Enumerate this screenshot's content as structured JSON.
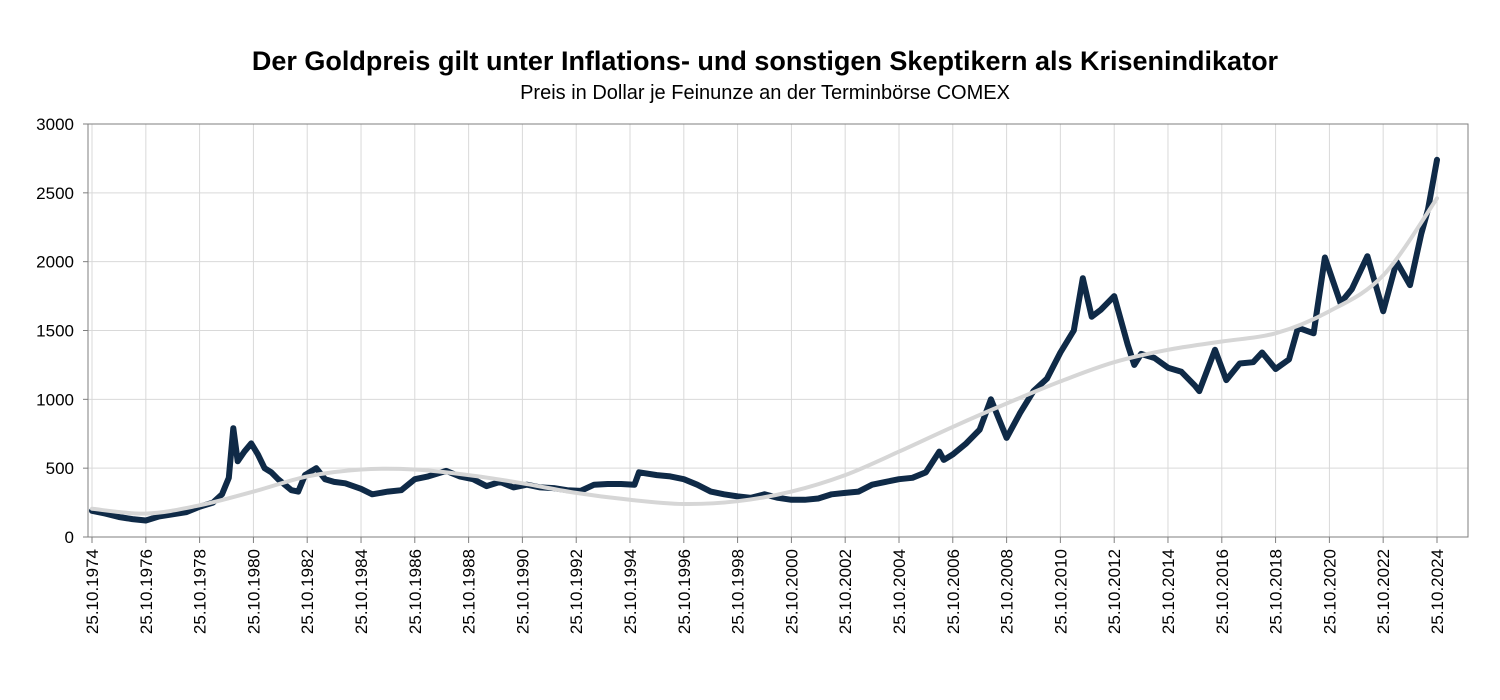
{
  "chart_data": {
    "type": "line",
    "title": "Der Goldpreis gilt unter Inflations- und sonstigen Skeptikern als Krisenindikator",
    "subtitle": "Preis in Dollar je Feinunze an der Terminbörse COMEX",
    "xlabel": "",
    "ylabel": "",
    "xlim": [
      "25.10.1974",
      "25.10.2024"
    ],
    "ylim": [
      0,
      3000
    ],
    "y_ticks": [
      "0",
      "500",
      "1000",
      "1500",
      "2000",
      "2500",
      "3000"
    ],
    "x_ticks": [
      "25.10.1974",
      "25.10.1976",
      "25.10.1978",
      "25.10.1980",
      "25.10.1982",
      "25.10.1984",
      "25.10.1986",
      "25.10.1988",
      "25.10.1990",
      "25.10.1992",
      "25.10.1994",
      "25.10.1996",
      "25.10.1998",
      "25.10.2000",
      "25.10.2002",
      "25.10.2004",
      "25.10.2006",
      "25.10.2008",
      "25.10.2010",
      "25.10.2012",
      "25.10.2014",
      "25.10.2016",
      "25.10.2018",
      "25.10.2020",
      "25.10.2022",
      "25.10.2024"
    ],
    "grid": true,
    "legend": "none",
    "series": [
      {
        "color": "#0f2a47",
        "style": "price",
        "points": [
          [
            "25.10.1974",
            190
          ],
          [
            "25.04.1975",
            170
          ],
          [
            "25.10.1975",
            145
          ],
          [
            "25.04.1976",
            130
          ],
          [
            "25.10.1976",
            120
          ],
          [
            "25.04.1977",
            150
          ],
          [
            "25.10.1977",
            165
          ],
          [
            "25.04.1978",
            180
          ],
          [
            "25.10.1978",
            220
          ],
          [
            "25.04.1979",
            250
          ],
          [
            "25.08.1979",
            310
          ],
          [
            "25.11.1979",
            430
          ],
          [
            "25.01.1980",
            790
          ],
          [
            "25.03.1980",
            550
          ],
          [
            "25.06.1980",
            620
          ],
          [
            "25.09.1980",
            680
          ],
          [
            "25.12.1980",
            600
          ],
          [
            "25.03.1981",
            500
          ],
          [
            "25.06.1981",
            470
          ],
          [
            "25.09.1981",
            420
          ],
          [
            "25.03.1982",
            340
          ],
          [
            "25.06.1982",
            330
          ],
          [
            "25.09.1982",
            450
          ],
          [
            "25.02.1983",
            500
          ],
          [
            "25.06.1983",
            420
          ],
          [
            "25.10.1983",
            400
          ],
          [
            "25.03.1984",
            390
          ],
          [
            "25.10.1984",
            350
          ],
          [
            "25.03.1985",
            310
          ],
          [
            "25.10.1985",
            330
          ],
          [
            "25.04.1986",
            340
          ],
          [
            "25.10.1986",
            420
          ],
          [
            "25.04.1987",
            440
          ],
          [
            "25.12.1987",
            480
          ],
          [
            "25.06.1988",
            440
          ],
          [
            "25.12.1988",
            420
          ],
          [
            "25.06.1989",
            370
          ],
          [
            "25.12.1989",
            400
          ],
          [
            "25.06.1990",
            360
          ],
          [
            "25.12.1990",
            380
          ],
          [
            "25.06.1991",
            360
          ],
          [
            "25.12.1991",
            355
          ],
          [
            "25.06.1992",
            340
          ],
          [
            "25.12.1992",
            335
          ],
          [
            "25.06.1993",
            380
          ],
          [
            "25.12.1993",
            385
          ],
          [
            "25.06.1994",
            385
          ],
          [
            "25.12.1994",
            380
          ],
          [
            "25.02.1995",
            470
          ],
          [
            "25.10.1995",
            450
          ],
          [
            "25.04.1996",
            440
          ],
          [
            "25.10.1996",
            420
          ],
          [
            "25.04.1997",
            380
          ],
          [
            "25.10.1997",
            330
          ],
          [
            "25.04.1998",
            310
          ],
          [
            "25.10.1998",
            295
          ],
          [
            "25.04.1999",
            285
          ],
          [
            "25.10.1999",
            310
          ],
          [
            "25.04.2000",
            285
          ],
          [
            "25.10.2000",
            270
          ],
          [
            "25.04.2001",
            270
          ],
          [
            "25.10.2001",
            280
          ],
          [
            "25.04.2002",
            310
          ],
          [
            "25.10.2002",
            320
          ],
          [
            "25.04.2003",
            330
          ],
          [
            "25.10.2003",
            380
          ],
          [
            "25.04.2004",
            400
          ],
          [
            "25.10.2004",
            420
          ],
          [
            "25.04.2005",
            430
          ],
          [
            "25.10.2005",
            470
          ],
          [
            "25.04.2006",
            620
          ],
          [
            "25.06.2006",
            560
          ],
          [
            "25.10.2006",
            600
          ],
          [
            "25.04.2007",
            680
          ],
          [
            "25.10.2007",
            780
          ],
          [
            "25.03.2008",
            1000
          ],
          [
            "25.10.2008",
            720
          ],
          [
            "25.04.2009",
            900
          ],
          [
            "25.10.2009",
            1060
          ],
          [
            "25.04.2010",
            1150
          ],
          [
            "25.10.2010",
            1340
          ],
          [
            "25.04.2011",
            1500
          ],
          [
            "25.08.2011",
            1880
          ],
          [
            "25.12.2011",
            1600
          ],
          [
            "25.04.2012",
            1650
          ],
          [
            "25.10.2012",
            1750
          ],
          [
            "25.04.2013",
            1400
          ],
          [
            "25.07.2013",
            1250
          ],
          [
            "25.10.2013",
            1330
          ],
          [
            "25.04.2014",
            1300
          ],
          [
            "25.10.2014",
            1230
          ],
          [
            "25.04.2015",
            1200
          ],
          [
            "25.10.2015",
            1100
          ],
          [
            "25.12.2015",
            1060
          ],
          [
            "25.07.2016",
            1360
          ],
          [
            "25.12.2016",
            1140
          ],
          [
            "25.06.2017",
            1260
          ],
          [
            "25.12.2017",
            1270
          ],
          [
            "25.04.2018",
            1340
          ],
          [
            "25.10.2018",
            1220
          ],
          [
            "25.04.2019",
            1290
          ],
          [
            "25.08.2019",
            1520
          ],
          [
            "25.03.2020",
            1480
          ],
          [
            "25.08.2020",
            2030
          ],
          [
            "25.03.2021",
            1700
          ],
          [
            "25.08.2021",
            1800
          ],
          [
            "25.03.2022",
            2040
          ],
          [
            "25.10.2022",
            1640
          ],
          [
            "25.04.2023",
            2000
          ],
          [
            "25.10.2023",
            1830
          ],
          [
            "25.03.2024",
            2200
          ],
          [
            "25.06.2024",
            2380
          ],
          [
            "25.10.2024",
            2740
          ]
        ]
      },
      {
        "color": "#d6d6d6",
        "style": "trend",
        "points": [
          [
            "25.10.1974",
            205
          ],
          [
            "25.10.1976",
            170
          ],
          [
            "25.10.1978",
            230
          ],
          [
            "25.10.1980",
            330
          ],
          [
            "25.10.1982",
            440
          ],
          [
            "25.10.1984",
            490
          ],
          [
            "25.10.1986",
            490
          ],
          [
            "25.10.1988",
            450
          ],
          [
            "25.10.1990",
            390
          ],
          [
            "25.10.1992",
            320
          ],
          [
            "25.10.1994",
            270
          ],
          [
            "25.10.1996",
            240
          ],
          [
            "25.10.1998",
            260
          ],
          [
            "25.10.2000",
            330
          ],
          [
            "25.10.2002",
            450
          ],
          [
            "25.10.2004",
            620
          ],
          [
            "25.10.2006",
            800
          ],
          [
            "25.10.2008",
            970
          ],
          [
            "25.10.2010",
            1130
          ],
          [
            "25.10.2012",
            1270
          ],
          [
            "25.10.2014",
            1360
          ],
          [
            "25.10.2016",
            1420
          ],
          [
            "25.10.2018",
            1480
          ],
          [
            "25.10.2020",
            1640
          ],
          [
            "25.10.2022",
            1900
          ],
          [
            "25.10.2024",
            2460
          ]
        ]
      }
    ]
  }
}
